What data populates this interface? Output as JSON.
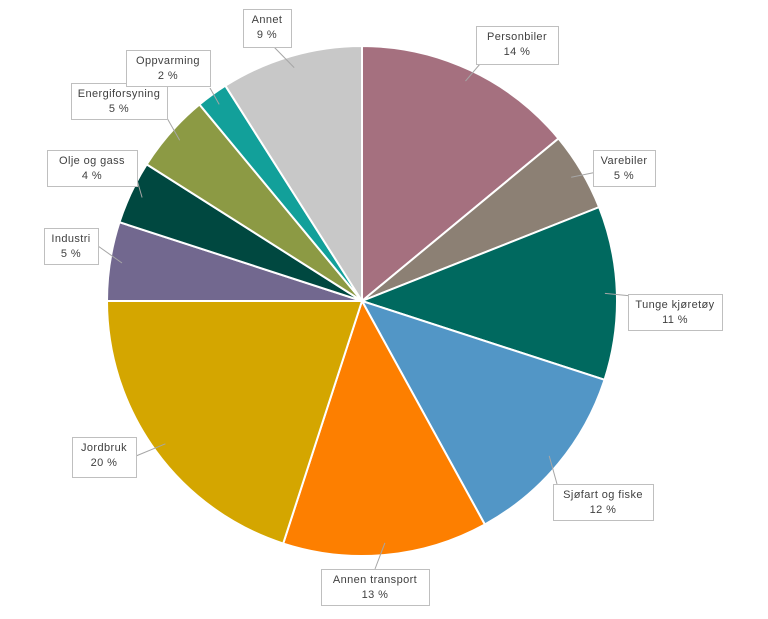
{
  "chart_data": {
    "type": "pie",
    "title": "",
    "start": "12 o'clock",
    "direction": "clockwise",
    "legend": "none",
    "slices": [
      {
        "label": "Personbiler",
        "value": 14,
        "value_label": "14 %",
        "color": "#a5707f"
      },
      {
        "label": "Varebiler",
        "value": 5,
        "value_label": "5 %",
        "color": "#8c8074"
      },
      {
        "label": "Tunge kjøretøy",
        "value": 11,
        "value_label": "11 %",
        "color": "#00695f"
      },
      {
        "label": "Sjøfart og fiske",
        "value": 12,
        "value_label": "12 %",
        "color": "#5296c6"
      },
      {
        "label": "Annen transport",
        "value": 13,
        "value_label": "13 %",
        "color": "#fd7f00"
      },
      {
        "label": "Jordbruk",
        "value": 20,
        "value_label": "20 %",
        "color": "#d4a600"
      },
      {
        "label": "Industri",
        "value": 5,
        "value_label": "5 %",
        "color": "#72688f"
      },
      {
        "label": "Olje og gass",
        "value": 4,
        "value_label": "4 %",
        "color": "#004840"
      },
      {
        "label": "Energiforsyning",
        "value": 5,
        "value_label": "5 %",
        "color": "#8c9a44"
      },
      {
        "label": "Oppvarming",
        "value": 2,
        "value_label": "2 %",
        "color": "#12a09a"
      },
      {
        "label": "Annet",
        "value": 9,
        "value_label": "9 %",
        "color": "#c8c8c8"
      }
    ]
  }
}
